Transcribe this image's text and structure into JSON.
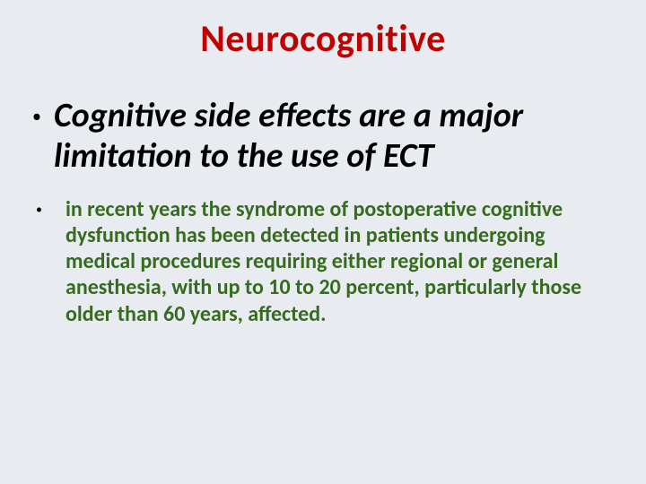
{
  "slide": {
    "title": "Neurocognitive",
    "title_color": "#c00000",
    "background_color": "#e8ecf0",
    "bullets": [
      {
        "level": 1,
        "text": "Cognitive side effects are a major limitation to the use of ECT",
        "color": "#000000",
        "italic": true,
        "fontsize_pt": 28
      },
      {
        "level": 2,
        "text": " in recent years the syndrome of postoperative cognitive dysfunction has been detected in patients undergoing medical procedures requiring either regional or general anesthesia, with up to 10 to 20 percent, particularly those older than 60 years, affected.",
        "color": "#376b20",
        "italic": false,
        "fontsize_pt": 18
      }
    ]
  }
}
